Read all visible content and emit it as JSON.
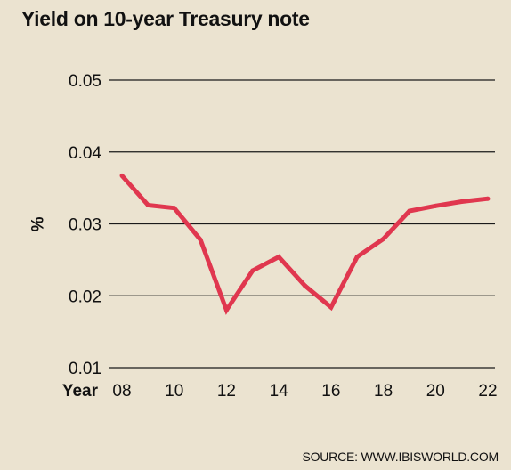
{
  "chart_data": {
    "type": "line",
    "title": "Yield on 10-year Treasury note",
    "xlabel": "Year",
    "ylabel": "%",
    "x": [
      8,
      9,
      10,
      11,
      12,
      13,
      14,
      15,
      16,
      17,
      18,
      19,
      20,
      21,
      22
    ],
    "x_tick_values": [
      8,
      10,
      12,
      14,
      16,
      18,
      20,
      22
    ],
    "x_tick_labels": [
      "08",
      "10",
      "12",
      "14",
      "16",
      "18",
      "20",
      "22"
    ],
    "y_ticks": [
      0.01,
      0.02,
      0.03,
      0.04,
      0.05
    ],
    "y_tick_labels": [
      "0.01",
      "0.02",
      "0.03",
      "0.04",
      "0.05"
    ],
    "ylim": [
      0.01,
      0.05
    ],
    "xlim": [
      8,
      22
    ],
    "grid": "horizontal",
    "series": [
      {
        "values": [
          0.0367,
          0.0326,
          0.0322,
          0.0278,
          0.018,
          0.0235,
          0.0254,
          0.0214,
          0.0184,
          0.0254,
          0.0279,
          0.0318,
          0.0325,
          0.0331,
          0.0335
        ]
      }
    ],
    "colors": {
      "line": "#e0374f",
      "grid": "#1a1a1a",
      "background": "#ebe3d0"
    }
  },
  "source": "SOURCE: WWW.IBISWORLD.COM"
}
